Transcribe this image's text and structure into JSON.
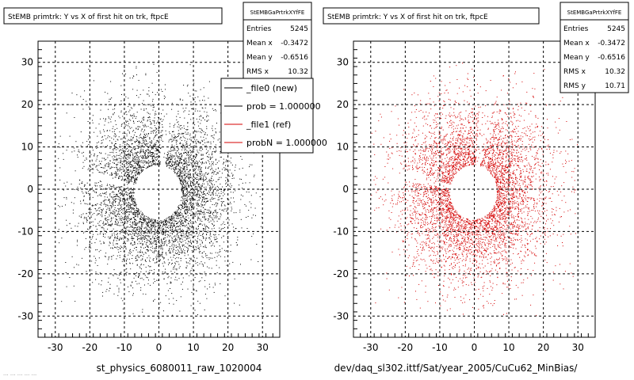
{
  "colors": {
    "left_points": "#000000",
    "right_points": "#d40000",
    "legend_new": "#000000",
    "legend_ref": "#d40000",
    "frame": "#000000",
    "background": "#ffffff"
  },
  "footer": {
    "corner": "... ... ... ... ...",
    "left": "st_physics_6080011_raw_1020004",
    "right": "dev/daq_sl302.ittf/Sat/year_2005/CuCu62_MinBias/"
  },
  "chart_data": [
    {
      "type": "scatter",
      "title": "StEMB primtrk: Y vs X of first hit on trk, ftpcE",
      "stats": {
        "name": "StEMBGaPrtrkXYfFE",
        "rows": [
          {
            "label": "Entries",
            "value": "5245"
          },
          {
            "label": "Mean x",
            "value": "-0.3472"
          },
          {
            "label": "Mean y",
            "value": "-0.6516"
          },
          {
            "label": "RMS x",
            "value": "10.32"
          }
        ]
      },
      "legend": {
        "placement": "top-right",
        "entries": [
          {
            "label": "_file0 (new)",
            "color": "#000000"
          },
          {
            "label": "prob = 1.000000",
            "color": "#000000"
          },
          {
            "label": "_file1 (ref)",
            "color": "#d40000"
          },
          {
            "label": "probN = 1.000000",
            "color": "#d40000"
          }
        ]
      },
      "xlim": [
        -35,
        35
      ],
      "ylim": [
        -35,
        35
      ],
      "xticks": [
        -30,
        -20,
        -10,
        0,
        10,
        20,
        30
      ],
      "yticks": [
        -30,
        -20,
        -10,
        0,
        10,
        20,
        30
      ],
      "grid": true,
      "series": [
        {
          "color": "#000000",
          "entries": 5245,
          "mean_x": -0.3472,
          "mean_y": -0.6516,
          "rms_x": 10.32,
          "rms_y": 10.71
        }
      ]
    },
    {
      "type": "scatter",
      "title": "StEMB primtrk: Y vs X of first hit on trk, ftpcE",
      "stats": {
        "name": "StEMBGaPrtrkXYfFE",
        "rows": [
          {
            "label": "Entries",
            "value": "5245"
          },
          {
            "label": "Mean x",
            "value": "-0.3472"
          },
          {
            "label": "Mean y",
            "value": "-0.6516"
          },
          {
            "label": "RMS x",
            "value": "10.32"
          },
          {
            "label": "RMS y",
            "value": "10.71"
          }
        ]
      },
      "xlim": [
        -35,
        35
      ],
      "ylim": [
        -35,
        35
      ],
      "xticks": [
        -30,
        -20,
        -10,
        0,
        10,
        20,
        30
      ],
      "yticks": [
        -30,
        -20,
        -10,
        0,
        10,
        20,
        30
      ],
      "grid": true,
      "series": [
        {
          "color": "#d40000",
          "entries": 5245,
          "mean_x": -0.3472,
          "mean_y": -0.6516,
          "rms_x": 10.32,
          "rms_y": 10.71
        }
      ]
    }
  ]
}
